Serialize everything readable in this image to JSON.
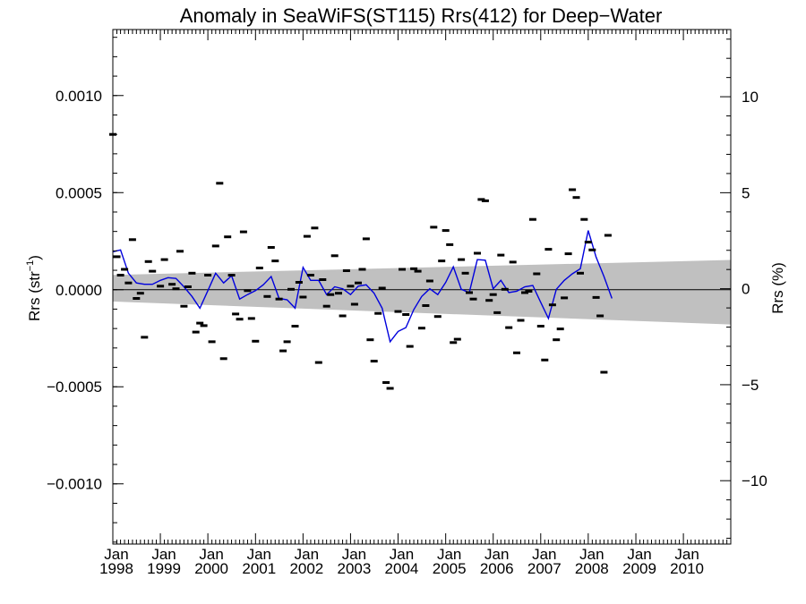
{
  "chart_data": {
    "type": "scatter",
    "title": "Anomaly in SeaWiFS(ST115) Rrs(412) for Deep−Water",
    "ylabel_left": "Rrs (str",
    "ylabel_left_sup": "−1",
    "ylabel_left_end": ")",
    "ylabel_right": "Rrs (%)",
    "x_range": [
      "1998-01-01",
      "2010-12-31"
    ],
    "ylim_left": [
      -0.00131,
      0.00134
    ],
    "ylim_right": [
      -13.3,
      13.5
    ],
    "yticks_left": [
      {
        "v": 0.001,
        "label": "0.0010"
      },
      {
        "v": 0.0005,
        "label": "0.0005"
      },
      {
        "v": 0.0,
        "label": "0.0000"
      },
      {
        "v": -0.0005,
        "label": "−0.0005"
      },
      {
        "v": -0.001,
        "label": "−0.0010"
      }
    ],
    "yticks_right": [
      {
        "v": 10,
        "label": "10"
      },
      {
        "v": 5,
        "label": "5"
      },
      {
        "v": 0,
        "label": "0"
      },
      {
        "v": -5,
        "label": "−5"
      },
      {
        "v": -10,
        "label": "−10"
      }
    ],
    "xticks": [
      {
        "date": "1998-01-01",
        "month": "Jan",
        "year": "1998"
      },
      {
        "date": "1999-01-01",
        "month": "Jan",
        "year": "1999"
      },
      {
        "date": "2000-01-01",
        "month": "Jan",
        "year": "2000"
      },
      {
        "date": "2001-01-01",
        "month": "Jan",
        "year": "2001"
      },
      {
        "date": "2002-01-01",
        "month": "Jan",
        "year": "2002"
      },
      {
        "date": "2003-01-01",
        "month": "Jan",
        "year": "2003"
      },
      {
        "date": "2004-01-01",
        "month": "Jan",
        "year": "2004"
      },
      {
        "date": "2005-01-01",
        "month": "Jan",
        "year": "2005"
      },
      {
        "date": "2006-01-01",
        "month": "Jan",
        "year": "2006"
      },
      {
        "date": "2007-01-01",
        "month": "Jan",
        "year": "2007"
      },
      {
        "date": "2008-01-01",
        "month": "Jan",
        "year": "2008"
      },
      {
        "date": "2009-01-01",
        "month": "Jan",
        "year": "2009"
      },
      {
        "date": "2010-01-01",
        "month": "Jan",
        "year": "2010"
      }
    ],
    "zero_line": 0.0,
    "band": {
      "upper": [
        {
          "date": "1998-01-01",
          "v": 7.6e-05
        },
        {
          "date": "2010-12-31",
          "v": 0.000153
        }
      ],
      "lower": [
        {
          "date": "1998-01-01",
          "v": -6.1e-05
        },
        {
          "date": "2010-12-31",
          "v": -0.000179
        }
      ],
      "color": "#c0c0c0"
    },
    "points": [
      {
        "date": "1998-01-01",
        "v": 0.0008
      },
      {
        "date": "1998-02-01",
        "v": 0.00017
      },
      {
        "date": "1998-03-01",
        "v": 7.5e-05
      },
      {
        "date": "1998-04-01",
        "v": 0.000105
      },
      {
        "date": "1998-05-01",
        "v": 3.5e-05
      },
      {
        "date": "1998-06-01",
        "v": 0.000258
      },
      {
        "date": "1998-07-01",
        "v": -4.5e-05
      },
      {
        "date": "1998-08-01",
        "v": -1.8e-05
      },
      {
        "date": "1998-09-01",
        "v": -0.000245
      },
      {
        "date": "1998-10-01",
        "v": 0.000145
      },
      {
        "date": "1998-11-01",
        "v": 9.5e-05
      },
      {
        "date": "1999-01-01",
        "v": 1.8e-05
      },
      {
        "date": "1999-02-01",
        "v": 0.000155
      },
      {
        "date": "1999-04-01",
        "v": 2.8e-05
      },
      {
        "date": "1999-05-01",
        "v": 5e-06
      },
      {
        "date": "1999-06-01",
        "v": 0.000198
      },
      {
        "date": "1999-07-01",
        "v": -8.5e-05
      },
      {
        "date": "1999-08-01",
        "v": 1.5e-05
      },
      {
        "date": "1999-09-01",
        "v": 8.5e-05
      },
      {
        "date": "1999-10-01",
        "v": -0.000218
      },
      {
        "date": "1999-11-01",
        "v": -0.000172
      },
      {
        "date": "1999-12-01",
        "v": -0.000185
      },
      {
        "date": "2000-01-01",
        "v": 7.5e-05
      },
      {
        "date": "2000-02-01",
        "v": -0.000268
      },
      {
        "date": "2000-03-01",
        "v": 0.000225
      },
      {
        "date": "2000-04-01",
        "v": 0.000548
      },
      {
        "date": "2000-05-01",
        "v": -0.000355
      },
      {
        "date": "2000-06-01",
        "v": 0.000272
      },
      {
        "date": "2000-07-01",
        "v": 7.5e-05
      },
      {
        "date": "2000-08-01",
        "v": -0.000125
      },
      {
        "date": "2000-09-01",
        "v": -0.000152
      },
      {
        "date": "2000-10-01",
        "v": 0.000298
      },
      {
        "date": "2000-11-01",
        "v": -5e-06
      },
      {
        "date": "2000-12-01",
        "v": -0.000148
      },
      {
        "date": "2001-01-01",
        "v": -0.000265
      },
      {
        "date": "2001-02-01",
        "v": 0.000112
      },
      {
        "date": "2001-04-01",
        "v": -3.5e-05
      },
      {
        "date": "2001-05-01",
        "v": 0.000218
      },
      {
        "date": "2001-06-01",
        "v": 0.000148
      },
      {
        "date": "2001-07-01",
        "v": -4.8e-05
      },
      {
        "date": "2001-08-01",
        "v": -0.000315
      },
      {
        "date": "2001-09-01",
        "v": -0.000268
      },
      {
        "date": "2001-10-01",
        "v": 2e-06
      },
      {
        "date": "2001-11-01",
        "v": -0.000188
      },
      {
        "date": "2001-12-01",
        "v": 3.8e-05
      },
      {
        "date": "2002-01-01",
        "v": -3.8e-05
      },
      {
        "date": "2002-02-01",
        "v": 0.000275
      },
      {
        "date": "2002-03-01",
        "v": 7.5e-05
      },
      {
        "date": "2002-04-01",
        "v": 0.000318
      },
      {
        "date": "2002-05-01",
        "v": -0.000375
      },
      {
        "date": "2002-06-01",
        "v": 5.2e-05
      },
      {
        "date": "2002-07-01",
        "v": -8.5e-05
      },
      {
        "date": "2002-08-01",
        "v": -2.5e-05
      },
      {
        "date": "2002-09-01",
        "v": 0.000175
      },
      {
        "date": "2002-10-01",
        "v": -1.8e-05
      },
      {
        "date": "2002-11-01",
        "v": -0.000135
      },
      {
        "date": "2002-12-01",
        "v": 9.8e-05
      },
      {
        "date": "2003-01-01",
        "v": 1.8e-05
      },
      {
        "date": "2003-02-01",
        "v": -7.5e-05
      },
      {
        "date": "2003-03-01",
        "v": 3.5e-05
      },
      {
        "date": "2003-04-01",
        "v": 0.000105
      },
      {
        "date": "2003-05-01",
        "v": 0.000262
      },
      {
        "date": "2003-06-01",
        "v": -0.000258
      },
      {
        "date": "2003-07-01",
        "v": -0.000368
      },
      {
        "date": "2003-08-01",
        "v": -0.000122
      },
      {
        "date": "2003-09-01",
        "v": 8e-06
      },
      {
        "date": "2003-10-01",
        "v": -0.000478
      },
      {
        "date": "2003-11-01",
        "v": -0.000508
      },
      {
        "date": "2004-01-01",
        "v": -0.000112
      },
      {
        "date": "2004-02-01",
        "v": 0.000105
      },
      {
        "date": "2004-03-01",
        "v": -0.000128
      },
      {
        "date": "2004-04-01",
        "v": -0.000292
      },
      {
        "date": "2004-05-01",
        "v": 0.000108
      },
      {
        "date": "2004-06-01",
        "v": 9.5e-05
      },
      {
        "date": "2004-07-01",
        "v": -0.000198
      },
      {
        "date": "2004-08-01",
        "v": -8.2e-05
      },
      {
        "date": "2004-09-01",
        "v": 4.5e-05
      },
      {
        "date": "2004-10-01",
        "v": 0.000322
      },
      {
        "date": "2004-11-01",
        "v": -0.000138
      },
      {
        "date": "2004-12-01",
        "v": 0.000148
      },
      {
        "date": "2005-01-01",
        "v": 0.000305
      },
      {
        "date": "2005-02-01",
        "v": 0.000232
      },
      {
        "date": "2005-03-01",
        "v": -0.000272
      },
      {
        "date": "2005-04-01",
        "v": -0.000255
      },
      {
        "date": "2005-05-01",
        "v": 0.000155
      },
      {
        "date": "2005-06-01",
        "v": 8.5e-05
      },
      {
        "date": "2005-07-01",
        "v": -1.5e-05
      },
      {
        "date": "2005-08-01",
        "v": -4.8e-05
      },
      {
        "date": "2005-09-01",
        "v": 0.000188
      },
      {
        "date": "2005-10-01",
        "v": 0.000465
      },
      {
        "date": "2005-11-01",
        "v": 0.000458
      },
      {
        "date": "2005-12-01",
        "v": -5.5e-05
      },
      {
        "date": "2006-01-01",
        "v": -2.5e-05
      },
      {
        "date": "2006-02-01",
        "v": -0.000118
      },
      {
        "date": "2006-03-01",
        "v": 0.000178
      },
      {
        "date": "2006-04-01",
        "v": 2e-06
      },
      {
        "date": "2006-05-01",
        "v": -0.000195
      },
      {
        "date": "2006-06-01",
        "v": 0.000142
      },
      {
        "date": "2006-07-01",
        "v": -0.000325
      },
      {
        "date": "2006-08-01",
        "v": -0.000158
      },
      {
        "date": "2006-09-01",
        "v": -1.5e-05
      },
      {
        "date": "2006-10-01",
        "v": -8e-06
      },
      {
        "date": "2006-11-01",
        "v": 0.000362
      },
      {
        "date": "2006-12-01",
        "v": 8.2e-05
      },
      {
        "date": "2007-01-01",
        "v": -0.000188
      },
      {
        "date": "2007-02-01",
        "v": -0.000362
      },
      {
        "date": "2007-03-01",
        "v": 0.000208
      },
      {
        "date": "2007-04-01",
        "v": -7.8e-05
      },
      {
        "date": "2007-05-01",
        "v": -0.000258
      },
      {
        "date": "2007-06-01",
        "v": -0.000202
      },
      {
        "date": "2007-07-01",
        "v": -4.2e-05
      },
      {
        "date": "2007-08-01",
        "v": 0.000185
      },
      {
        "date": "2007-09-01",
        "v": 0.000515
      },
      {
        "date": "2007-10-01",
        "v": 0.000475
      },
      {
        "date": "2007-11-01",
        "v": 8.5e-05
      },
      {
        "date": "2007-12-01",
        "v": 0.000362
      },
      {
        "date": "2008-01-01",
        "v": 0.000245
      },
      {
        "date": "2008-02-01",
        "v": 0.000205
      },
      {
        "date": "2008-03-01",
        "v": -4e-05
      },
      {
        "date": "2008-04-01",
        "v": -0.000135
      },
      {
        "date": "2008-05-01",
        "v": -0.000425
      },
      {
        "date": "2008-06-01",
        "v": 0.00028
      }
    ],
    "line": {
      "color": "#0000dd",
      "values": [
        {
          "date": "1998-01-01",
          "v": 0.000195
        },
        {
          "date": "1998-03-01",
          "v": 0.000205
        },
        {
          "date": "1998-05-01",
          "v": 8.5e-05
        },
        {
          "date": "1998-07-01",
          "v": 3.5e-05
        },
        {
          "date": "1998-09-01",
          "v": 2.8e-05
        },
        {
          "date": "1998-11-01",
          "v": 2.8e-05
        },
        {
          "date": "1999-01-01",
          "v": 4.8e-05
        },
        {
          "date": "1999-03-01",
          "v": 6.2e-05
        },
        {
          "date": "1999-05-01",
          "v": 5.8e-05
        },
        {
          "date": "1999-07-01",
          "v": 1.5e-05
        },
        {
          "date": "1999-09-01",
          "v": -3.5e-05
        },
        {
          "date": "1999-11-01",
          "v": -9.5e-05
        },
        {
          "date": "2000-01-01",
          "v": -5e-06
        },
        {
          "date": "2000-03-01",
          "v": 8.5e-05
        },
        {
          "date": "2000-05-01",
          "v": 3.5e-05
        },
        {
          "date": "2000-07-01",
          "v": 7.2e-05
        },
        {
          "date": "2000-09-01",
          "v": -4.8e-05
        },
        {
          "date": "2000-11-01",
          "v": -2.5e-05
        },
        {
          "date": "2001-01-01",
          "v": -5e-06
        },
        {
          "date": "2001-03-01",
          "v": 2.5e-05
        },
        {
          "date": "2001-05-01",
          "v": 6.8e-05
        },
        {
          "date": "2001-07-01",
          "v": -4.5e-05
        },
        {
          "date": "2001-09-01",
          "v": -5.2e-05
        },
        {
          "date": "2001-11-01",
          "v": -9.5e-05
        },
        {
          "date": "2002-01-01",
          "v": 0.000115
        },
        {
          "date": "2002-03-01",
          "v": 4.8e-05
        },
        {
          "date": "2002-05-01",
          "v": 4.8e-05
        },
        {
          "date": "2002-07-01",
          "v": -2.5e-05
        },
        {
          "date": "2002-09-01",
          "v": 1.5e-05
        },
        {
          "date": "2002-11-01",
          "v": 5e-06
        },
        {
          "date": "2003-01-01",
          "v": -2.5e-05
        },
        {
          "date": "2003-03-01",
          "v": 1.8e-05
        },
        {
          "date": "2003-05-01",
          "v": 2.5e-05
        },
        {
          "date": "2003-07-01",
          "v": -1.8e-05
        },
        {
          "date": "2003-09-01",
          "v": -9.5e-05
        },
        {
          "date": "2003-11-01",
          "v": -0.000268
        },
        {
          "date": "2004-01-01",
          "v": -0.000215
        },
        {
          "date": "2004-03-01",
          "v": -0.000195
        },
        {
          "date": "2004-05-01",
          "v": -0.000102
        },
        {
          "date": "2004-07-01",
          "v": -3.5e-05
        },
        {
          "date": "2004-09-01",
          "v": 5e-06
        },
        {
          "date": "2004-11-01",
          "v": -2.5e-05
        },
        {
          "date": "2005-01-01",
          "v": 3.8e-05
        },
        {
          "date": "2005-03-01",
          "v": 0.000118
        },
        {
          "date": "2005-05-01",
          "v": 2e-06
        },
        {
          "date": "2005-07-01",
          "v": -1.5e-05
        },
        {
          "date": "2005-09-01",
          "v": 0.000155
        },
        {
          "date": "2005-11-01",
          "v": 0.000152
        },
        {
          "date": "2006-01-01",
          "v": 5e-06
        },
        {
          "date": "2006-03-01",
          "v": 4.8e-05
        },
        {
          "date": "2006-05-01",
          "v": -1.5e-05
        },
        {
          "date": "2006-07-01",
          "v": -8e-06
        },
        {
          "date": "2006-09-01",
          "v": 1.5e-05
        },
        {
          "date": "2006-11-01",
          "v": 2.2e-05
        },
        {
          "date": "2007-01-01",
          "v": -6.5e-05
        },
        {
          "date": "2007-03-01",
          "v": -0.000148
        },
        {
          "date": "2007-05-01",
          "v": 2e-06
        },
        {
          "date": "2007-07-01",
          "v": 4.8e-05
        },
        {
          "date": "2007-09-01",
          "v": 8.2e-05
        },
        {
          "date": "2007-11-01",
          "v": 0.000108
        },
        {
          "date": "2008-01-01",
          "v": 0.000305
        },
        {
          "date": "2008-03-01",
          "v": 0.000168
        },
        {
          "date": "2008-05-01",
          "v": 6.8e-05
        },
        {
          "date": "2008-07-01",
          "v": -4.5e-05
        }
      ]
    }
  }
}
